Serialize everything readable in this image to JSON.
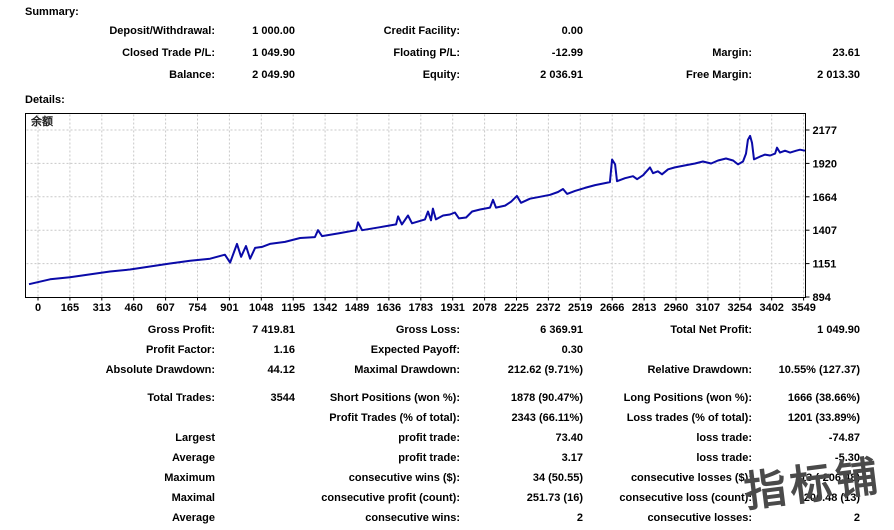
{
  "summary": {
    "heading": "Summary:",
    "rows": [
      [
        "Deposit/Withdrawal:",
        "1 000.00",
        "Credit Facility:",
        "0.00",
        "",
        ""
      ],
      [
        "Closed Trade P/L:",
        "1 049.90",
        "Floating P/L:",
        "-12.99",
        "Margin:",
        "23.61"
      ],
      [
        "Balance:",
        "2 049.90",
        "Equity:",
        "2 036.91",
        "Free Margin:",
        "2 013.30"
      ]
    ]
  },
  "details": {
    "heading": "Details:",
    "groups": [
      [
        [
          "Gross Profit:",
          "7 419.81",
          "Gross Loss:",
          "6 369.91",
          "Total Net Profit:",
          "1 049.90"
        ],
        [
          "Profit Factor:",
          "1.16",
          "Expected Payoff:",
          "0.30",
          "",
          ""
        ],
        [
          "Absolute Drawdown:",
          "44.12",
          "Maximal Drawdown:",
          "212.62 (9.71%)",
          "Relative Drawdown:",
          "10.55% (127.37)"
        ]
      ],
      [
        [
          "Total Trades:",
          "3544",
          "Short Positions (won %):",
          "1878 (90.47%)",
          "Long Positions (won %):",
          "1666 (38.66%)"
        ],
        [
          "",
          "",
          "Profit Trades (% of total):",
          "2343 (66.11%)",
          "Loss trades (% of total):",
          "1201 (33.89%)"
        ]
      ],
      [
        [
          "Largest",
          "",
          "profit trade:",
          "73.40",
          "loss trade:",
          "-74.87"
        ],
        [
          "Average",
          "",
          "profit trade:",
          "3.17",
          "loss trade:",
          "-5.30"
        ],
        [
          "Maximum",
          "",
          "consecutive wins ($):",
          "34 (50.55)",
          "consecutive losses ($):",
          "13 (-206.48)"
        ],
        [
          "Maximal",
          "",
          "consecutive profit (count):",
          "251.73 (16)",
          "consecutive loss (count):",
          "-206.48 (13)"
        ],
        [
          "Average",
          "",
          "consecutive wins:",
          "2",
          "consecutive losses:",
          "2"
        ]
      ]
    ]
  },
  "watermark": {
    "text": "指标铺",
    "color": "#4a4a4a"
  },
  "chart_data": {
    "type": "line",
    "title": "余额",
    "legend_label": "余额",
    "line_color": "#0a0aa8",
    "grid_color": "#c8c8c8",
    "frame_color": "#000000",
    "grid": "dashed",
    "x_tick_labels": [
      "0",
      "165",
      "313",
      "460",
      "607",
      "754",
      "901",
      "1048",
      "1195",
      "1342",
      "1489",
      "1636",
      "1783",
      "1931",
      "2078",
      "2225",
      "2372",
      "2519",
      "2666",
      "2813",
      "2960",
      "3107",
      "3254",
      "3402",
      "3549"
    ],
    "y_tick_labels": [
      "2177",
      "1920",
      "1664",
      "1407",
      "1151",
      "894"
    ],
    "xlim": [
      0,
      3604
    ],
    "ylim": [
      894,
      2240
    ],
    "series": [
      {
        "name": "余额",
        "points": [
          [
            0,
            992
          ],
          [
            98,
            1030
          ],
          [
            190,
            1045
          ],
          [
            283,
            1068
          ],
          [
            376,
            1090
          ],
          [
            469,
            1105
          ],
          [
            562,
            1128
          ],
          [
            655,
            1151
          ],
          [
            748,
            1173
          ],
          [
            841,
            1188
          ],
          [
            910,
            1219
          ],
          [
            934,
            1158
          ],
          [
            966,
            1302
          ],
          [
            985,
            1203
          ],
          [
            1008,
            1286
          ],
          [
            1027,
            1188
          ],
          [
            1050,
            1271
          ],
          [
            1082,
            1279
          ],
          [
            1119,
            1302
          ],
          [
            1189,
            1317
          ],
          [
            1259,
            1347
          ],
          [
            1328,
            1354
          ],
          [
            1342,
            1407
          ],
          [
            1361,
            1362
          ],
          [
            1444,
            1385
          ],
          [
            1519,
            1407
          ],
          [
            1528,
            1468
          ],
          [
            1547,
            1407
          ],
          [
            1630,
            1430
          ],
          [
            1705,
            1452
          ],
          [
            1714,
            1513
          ],
          [
            1732,
            1452
          ],
          [
            1760,
            1520
          ],
          [
            1779,
            1460
          ],
          [
            1839,
            1490
          ],
          [
            1853,
            1551
          ],
          [
            1867,
            1483
          ],
          [
            1876,
            1573
          ],
          [
            1890,
            1490
          ],
          [
            1923,
            1520
          ],
          [
            1955,
            1528
          ],
          [
            1978,
            1543
          ],
          [
            1997,
            1498
          ],
          [
            2030,
            1505
          ],
          [
            2058,
            1551
          ],
          [
            2095,
            1566
          ],
          [
            2141,
            1581
          ],
          [
            2155,
            1641
          ],
          [
            2169,
            1581
          ],
          [
            2211,
            1596
          ],
          [
            2239,
            1626
          ],
          [
            2266,
            1671
          ],
          [
            2285,
            1618
          ],
          [
            2327,
            1649
          ],
          [
            2373,
            1664
          ],
          [
            2420,
            1679
          ],
          [
            2457,
            1701
          ],
          [
            2480,
            1724
          ],
          [
            2499,
            1686
          ],
          [
            2536,
            1709
          ],
          [
            2582,
            1732
          ],
          [
            2629,
            1754
          ],
          [
            2675,
            1769
          ],
          [
            2698,
            1777
          ],
          [
            2708,
            1950
          ],
          [
            2722,
            1913
          ],
          [
            2731,
            1784
          ],
          [
            2768,
            1807
          ],
          [
            2805,
            1822
          ],
          [
            2824,
            1799
          ],
          [
            2852,
            1830
          ],
          [
            2884,
            1890
          ],
          [
            2898,
            1845
          ],
          [
            2921,
            1860
          ],
          [
            2940,
            1837
          ],
          [
            2968,
            1875
          ],
          [
            3000,
            1890
          ],
          [
            3047,
            1905
          ],
          [
            3093,
            1920
          ],
          [
            3130,
            1935
          ],
          [
            3168,
            1920
          ],
          [
            3200,
            1943
          ],
          [
            3237,
            1958
          ],
          [
            3270,
            1943
          ],
          [
            3293,
            1913
          ],
          [
            3316,
            1935
          ],
          [
            3330,
            1996
          ],
          [
            3339,
            2101
          ],
          [
            3349,
            2132
          ],
          [
            3358,
            2079
          ],
          [
            3367,
            1951
          ],
          [
            3395,
            1973
          ],
          [
            3418,
            1988
          ],
          [
            3442,
            1981
          ],
          [
            3465,
            1996
          ],
          [
            3474,
            2041
          ],
          [
            3488,
            2003
          ],
          [
            3511,
            2018
          ],
          [
            3535,
            2003
          ],
          [
            3563,
            2018
          ],
          [
            3581,
            2026
          ],
          [
            3604,
            2018
          ]
        ]
      }
    ]
  }
}
